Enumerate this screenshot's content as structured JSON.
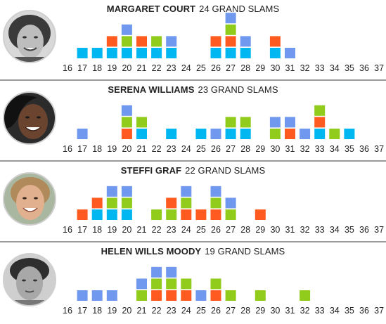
{
  "colors": {
    "australian-open": "#00b7f1",
    "french-open": "#ff5a1f",
    "wimbledon": "#91cc1c",
    "us-open": "#6f98ee",
    "divider": "#9a9a9a"
  },
  "chart_data": [
    {
      "type": "bar",
      "title": "MARGARET COURT",
      "subtitle": "24 GRAND SLAMS",
      "categories": [
        "16",
        "17",
        "18",
        "19",
        "20",
        "21",
        "22",
        "23",
        "24",
        "25",
        "26",
        "27",
        "28",
        "29",
        "30",
        "31",
        "32",
        "33",
        "34",
        "35",
        "36",
        "37"
      ],
      "stacks": {
        "17": [
          "australian-open"
        ],
        "18": [
          "australian-open"
        ],
        "19": [
          "australian-open",
          "french-open"
        ],
        "20": [
          "australian-open",
          "wimbledon",
          "us-open"
        ],
        "21": [
          "australian-open",
          "french-open"
        ],
        "22": [
          "australian-open",
          "wimbledon"
        ],
        "23": [
          "australian-open",
          "us-open"
        ],
        "26": [
          "australian-open",
          "french-open"
        ],
        "27": [
          "australian-open",
          "french-open",
          "wimbledon",
          "us-open"
        ],
        "28": [
          "australian-open",
          "us-open"
        ],
        "30": [
          "australian-open",
          "french-open"
        ],
        "31": [
          "us-open"
        ]
      }
    },
    {
      "type": "bar",
      "title": "SERENA WILLIAMS",
      "subtitle": "23 GRAND SLAMS",
      "categories": [
        "16",
        "17",
        "18",
        "19",
        "20",
        "21",
        "22",
        "23",
        "24",
        "25",
        "26",
        "27",
        "28",
        "29",
        "30",
        "31",
        "32",
        "33",
        "34",
        "35",
        "36",
        "37"
      ],
      "stacks": {
        "17": [
          "us-open"
        ],
        "20": [
          "french-open",
          "wimbledon",
          "us-open"
        ],
        "21": [
          "australian-open",
          "wimbledon"
        ],
        "23": [
          "australian-open"
        ],
        "25": [
          "australian-open"
        ],
        "26": [
          "us-open"
        ],
        "27": [
          "australian-open",
          "wimbledon"
        ],
        "28": [
          "australian-open",
          "wimbledon"
        ],
        "30": [
          "wimbledon",
          "us-open"
        ],
        "31": [
          "french-open",
          "us-open"
        ],
        "32": [
          "us-open"
        ],
        "33": [
          "australian-open",
          "french-open",
          "wimbledon"
        ],
        "34": [
          "wimbledon"
        ],
        "35": [
          "australian-open"
        ]
      }
    },
    {
      "type": "bar",
      "title": "STEFFI GRAF",
      "subtitle": "22 GRAND SLAMS",
      "categories": [
        "16",
        "17",
        "18",
        "19",
        "20",
        "21",
        "22",
        "23",
        "24",
        "25",
        "26",
        "27",
        "28",
        "29",
        "30",
        "31",
        "32",
        "33",
        "34",
        "35",
        "36",
        "37"
      ],
      "stacks": {
        "17": [
          "french-open"
        ],
        "18": [
          "australian-open",
          "french-open"
        ],
        "19": [
          "australian-open",
          "wimbledon",
          "us-open"
        ],
        "20": [
          "australian-open",
          "wimbledon",
          "us-open"
        ],
        "22": [
          "wimbledon"
        ],
        "23": [
          "wimbledon",
          "french-open"
        ],
        "24": [
          "french-open",
          "wimbledon",
          "us-open"
        ],
        "25": [
          "french-open"
        ],
        "26": [
          "french-open",
          "wimbledon",
          "us-open"
        ],
        "27": [
          "wimbledon",
          "us-open"
        ],
        "29": [
          "french-open"
        ]
      }
    },
    {
      "type": "bar",
      "title": "HELEN WILLS MOODY",
      "subtitle": "19 GRAND SLAMS",
      "categories": [
        "16",
        "17",
        "18",
        "19",
        "20",
        "21",
        "22",
        "23",
        "24",
        "25",
        "26",
        "27",
        "28",
        "29",
        "30",
        "31",
        "32",
        "33",
        "34",
        "35",
        "36",
        "37"
      ],
      "stacks": {
        "17": [
          "us-open"
        ],
        "18": [
          "us-open"
        ],
        "19": [
          "us-open"
        ],
        "21": [
          "wimbledon",
          "us-open"
        ],
        "22": [
          "french-open",
          "wimbledon",
          "us-open"
        ],
        "23": [
          "french-open",
          "wimbledon",
          "us-open"
        ],
        "24": [
          "french-open",
          "wimbledon"
        ],
        "25": [
          "us-open"
        ],
        "26": [
          "french-open",
          "wimbledon"
        ],
        "27": [
          "wimbledon"
        ],
        "29": [
          "wimbledon"
        ],
        "32": [
          "wimbledon"
        ]
      }
    }
  ]
}
